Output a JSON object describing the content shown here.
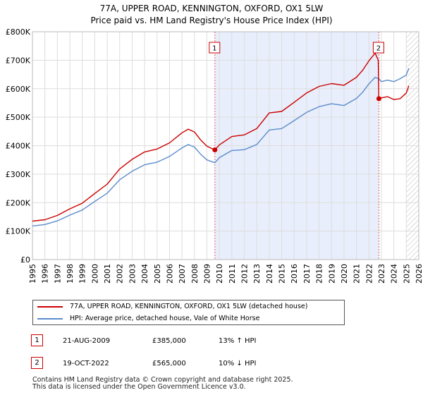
{
  "chart_data": {
    "type": "line",
    "title": "77A, UPPER ROAD, KENNINGTON, OXFORD, OX1 5LW",
    "subtitle": "Price paid vs. HM Land Registry's House Price Index (HPI)",
    "xlabel": "",
    "ylabel": "",
    "xlim": [
      1995,
      2026
    ],
    "ylim": [
      0,
      800000
    ],
    "x_ticks": [
      "1995",
      "1996",
      "1997",
      "1998",
      "1999",
      "2000",
      "2001",
      "2002",
      "2003",
      "2004",
      "2005",
      "2006",
      "2007",
      "2008",
      "2009",
      "2010",
      "2011",
      "2012",
      "2013",
      "2014",
      "2015",
      "2016",
      "2017",
      "2018",
      "2019",
      "2020",
      "2021",
      "2022",
      "2023",
      "2024",
      "2025",
      "2026"
    ],
    "y_ticks": [
      {
        "value": 0,
        "label": "£0"
      },
      {
        "value": 100000,
        "label": "£100K"
      },
      {
        "value": 200000,
        "label": "£200K"
      },
      {
        "value": 300000,
        "label": "£300K"
      },
      {
        "value": 400000,
        "label": "£400K"
      },
      {
        "value": 500000,
        "label": "£500K"
      },
      {
        "value": 600000,
        "label": "£600K"
      },
      {
        "value": 700000,
        "label": "£700K"
      },
      {
        "value": 800000,
        "label": "£800K"
      }
    ],
    "grid": true,
    "shaded_period": [
      2009.64,
      2022.8
    ],
    "future_hatch_from": 2025.0,
    "series": [
      {
        "name": "77A, UPPER ROAD, KENNINGTON, OXFORD, OX1 5LW (detached house)",
        "color": "#cc0000",
        "x": [
          1995,
          1996,
          1997,
          1998,
          1999,
          2000,
          2001,
          2002,
          2003,
          2004,
          2005,
          2006,
          2007,
          2007.5,
          2008,
          2008.5,
          2009,
          2009.64,
          2010,
          2011,
          2012,
          2013,
          2014,
          2015,
          2016,
          2017,
          2018,
          2019,
          2020,
          2021,
          2021.5,
          2022,
          2022.5,
          2022.75,
          2022.8,
          2023,
          2023.5,
          2024,
          2024.5,
          2025,
          2025.2
        ],
        "y": [
          135000,
          140000,
          155000,
          178000,
          198000,
          232000,
          265000,
          318000,
          352000,
          378000,
          388000,
          410000,
          445000,
          458000,
          448000,
          420000,
          398000,
          385000,
          403000,
          432000,
          438000,
          460000,
          515000,
          520000,
          552000,
          585000,
          608000,
          618000,
          612000,
          640000,
          665000,
          698000,
          725000,
          700000,
          565000,
          568000,
          572000,
          562000,
          565000,
          585000,
          610000
        ]
      },
      {
        "name": "HPI: Average price, detached house, Vale of White Horse",
        "color": "#5b8ccc",
        "x": [
          1995,
          1996,
          1997,
          1998,
          1999,
          2000,
          2001,
          2002,
          2003,
          2004,
          2005,
          2006,
          2007,
          2007.5,
          2008,
          2008.5,
          2009,
          2009.64,
          2010,
          2011,
          2012,
          2013,
          2014,
          2015,
          2016,
          2017,
          2018,
          2019,
          2020,
          2021,
          2021.5,
          2022,
          2022.5,
          2022.8,
          2023,
          2023.5,
          2024,
          2024.5,
          2025,
          2025.2
        ],
        "y": [
          118000,
          123000,
          136000,
          156000,
          174000,
          204000,
          233000,
          280000,
          310000,
          333000,
          342000,
          362000,
          392000,
          404000,
          395000,
          370000,
          350000,
          340000,
          358000,
          383000,
          386000,
          404000,
          455000,
          460000,
          488000,
          517000,
          537000,
          547000,
          541000,
          566000,
          588000,
          617000,
          640000,
          635000,
          625000,
          630000,
          625000,
          635000,
          648000,
          672000
        ]
      }
    ],
    "annotations": [
      {
        "label": "1",
        "x": 2009.64,
        "y": 385000
      },
      {
        "label": "2",
        "x": 2022.8,
        "y": 565000
      }
    ]
  },
  "legend": {
    "property_label": "77A, UPPER ROAD, KENNINGTON, OXFORD, OX1 5LW (detached house)",
    "hpi_label": "HPI: Average price, detached house, Vale of White Horse"
  },
  "transactions": [
    {
      "num": "1",
      "date": "21-AUG-2009",
      "price": "£385,000",
      "hpi": "13% ↑ HPI"
    },
    {
      "num": "2",
      "date": "19-OCT-2022",
      "price": "£565,000",
      "hpi": "10% ↓ HPI"
    }
  ],
  "footer": {
    "line1": "Contains HM Land Registry data © Crown copyright and database right 2025.",
    "line2": "This data is licensed under the Open Government Licence v3.0."
  },
  "colors": {
    "property": "#cc0000",
    "hpi": "#5b8ccc",
    "shade": "#e8eefb",
    "grid": "#dddddd",
    "marker_vline": "#e06060"
  }
}
